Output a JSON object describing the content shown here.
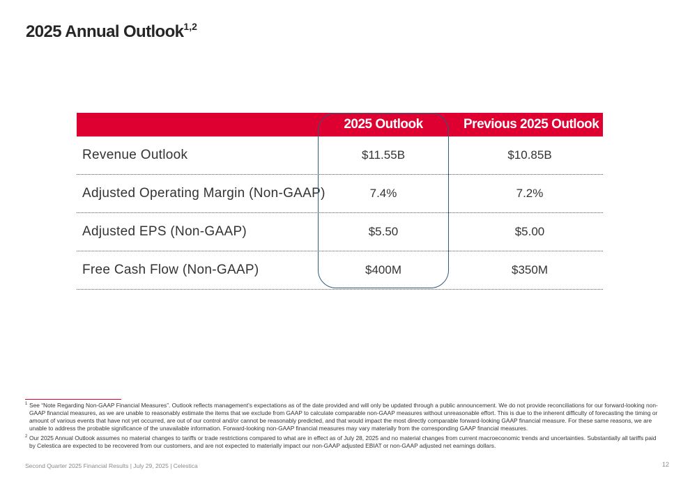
{
  "title": {
    "text": "2025 Annual Outlook",
    "superscript": "1,2"
  },
  "table": {
    "columns": [
      "2025 Outlook",
      "Previous 2025 Outlook"
    ],
    "rows": [
      {
        "label": "Revenue Outlook",
        "current": "$11.55B",
        "previous": "$10.85B"
      },
      {
        "label": "Adjusted Operating Margin (Non-GAAP)",
        "current": "7.4%",
        "previous": "7.2%"
      },
      {
        "label": "Adjusted EPS (Non-GAAP)",
        "current": "$5.50",
        "previous": "$5.00"
      },
      {
        "label": "Free Cash Flow (Non-GAAP)",
        "current": "$400M",
        "previous": "$350M"
      }
    ]
  },
  "footnotes": [
    {
      "number": "1",
      "text": "See “Note Regarding Non-GAAP Financial Measures”. Outlook reflects management’s expectations as of the date provided and will only be updated through a public announcement. We do not provide reconciliations for our forward-looking non-GAAP financial measures, as we are unable to  reasonably estimate the items that we exclude from GAAP to calculate comparable non-GAAP measures without unreasonable effort. This is due to the inherent difficulty of forecasting the timing or amount of various events that have not yet occurred, are out of our control and/or cannot be reasonably predicted, and that would impact the most directly comparable forward-looking GAAP financial measure. For these same reasons, we are unable to address the probable significance of the unavailable information. Forward-looking non-GAAP financial measures may vary materially from the corresponding GAAP financial measures."
    },
    {
      "number": "2",
      "text": "Our 2025 Annual Outlook assumes no material changes to tariffs or trade restrictions compared to what are in effect as of July 28, 2025 and no material changes from current macroeconomic trends and uncertainties. Substantially all tariffs paid by Celestica are expected to be recovered from our customers, and are not expected to materially impact our non-GAAP adjusted EBIAT or non-GAAP adjusted net earnings dollars."
    }
  ],
  "footer": {
    "text": "Second Quarter 2025 Financial Results | July 29, 2025  |  Celestica",
    "page_number": "12"
  },
  "colors": {
    "header_red": "#dd0031",
    "highlight_border": "#2e5a7d"
  }
}
